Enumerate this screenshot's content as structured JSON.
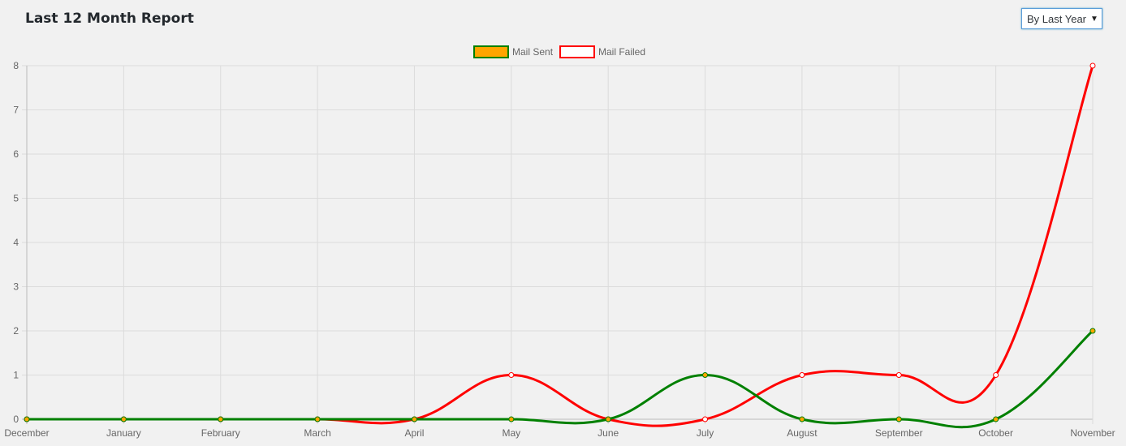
{
  "header": {
    "title": "Last 12 Month Report",
    "period_select": {
      "selected": "By Last Year",
      "caret_icon": "triangle-down-icon"
    }
  },
  "chart_data": {
    "type": "line",
    "categories": [
      "December",
      "January",
      "February",
      "March",
      "April",
      "May",
      "June",
      "July",
      "August",
      "September",
      "October",
      "November"
    ],
    "ylim": [
      0,
      8
    ],
    "yticks": [
      0,
      1,
      2,
      3,
      4,
      5,
      6,
      7,
      8
    ],
    "grid": true,
    "legend_position": "top-center",
    "series": [
      {
        "name": "Mail Sent",
        "values": [
          0,
          0,
          0,
          0,
          0,
          0,
          0,
          1,
          0,
          0,
          0,
          2
        ],
        "line_color": "#008000",
        "point_color": "#ffa500"
      },
      {
        "name": "Mail Failed",
        "values": [
          0,
          0,
          0,
          0,
          0,
          1,
          0,
          0,
          1,
          1,
          1,
          8
        ],
        "line_color": "#ff0000",
        "point_color": "#ffffff"
      }
    ]
  }
}
